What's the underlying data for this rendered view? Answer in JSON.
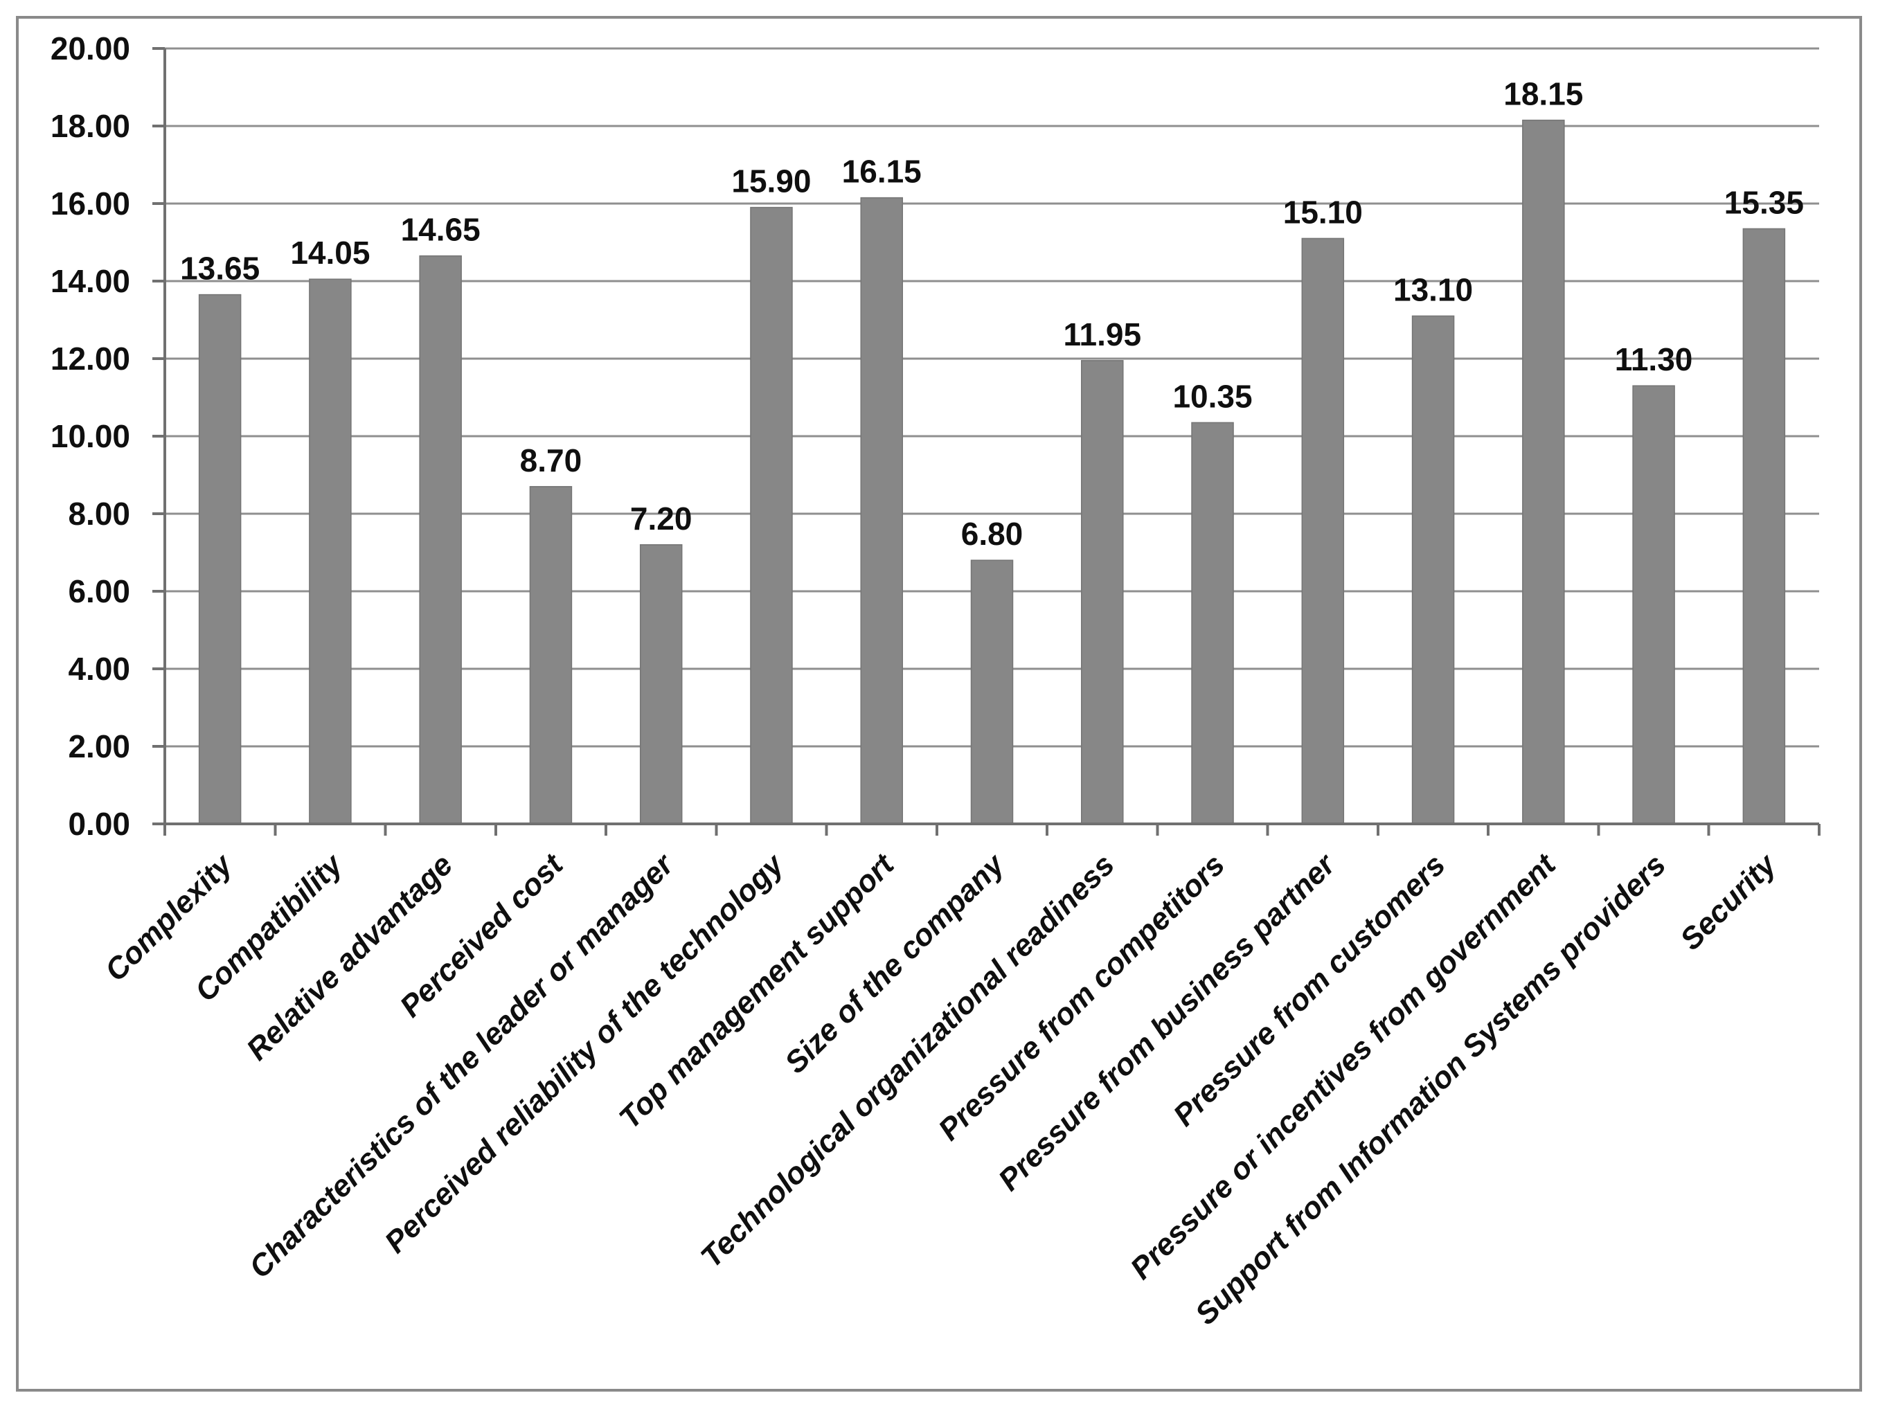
{
  "figure": {
    "background": "#ffffff",
    "border_color": "#8a8a8a"
  },
  "chart_data": {
    "type": "bar",
    "title": "",
    "xlabel": "",
    "ylabel": "",
    "categories": [
      "Complexity",
      "Compatibility",
      "Relative advantage",
      "Perceived cost",
      "Characteristics of the leader or manager",
      "Perceived reliability of the technology",
      "Top management support",
      "Size of the company",
      "Technological organizational readiness",
      "Pressure from competitors",
      "Pressure from business partner",
      "Pressure from customers",
      "Pressure or incentives from government",
      "Support from Information Systems providers",
      "Security"
    ],
    "values": [
      13.65,
      14.05,
      14.65,
      8.7,
      7.2,
      15.9,
      16.15,
      6.8,
      11.95,
      10.35,
      15.1,
      13.1,
      18.15,
      11.3,
      15.35
    ],
    "value_labels": [
      "13.65",
      "14.05",
      "14.65",
      "8.70",
      "7.20",
      "15.90",
      "16.15",
      "6.80",
      "11.95",
      "10.35",
      "15.10",
      "13.10",
      "18.15",
      "11.30",
      "15.35"
    ],
    "ylim": [
      0,
      20
    ],
    "ytick_step": 2,
    "ytick_labels": [
      "0.00",
      "2.00",
      "4.00",
      "6.00",
      "8.00",
      "10.00",
      "12.00",
      "14.00",
      "16.00",
      "18.00",
      "20.00"
    ],
    "grid": true,
    "legend": "none",
    "bar_color": "#878787",
    "bar_edge_color": "#757575",
    "gridline_color": "#8f8f8f",
    "axis_color": "#707070",
    "tick_color": "#707070",
    "text_color": "#0f0f0f"
  }
}
